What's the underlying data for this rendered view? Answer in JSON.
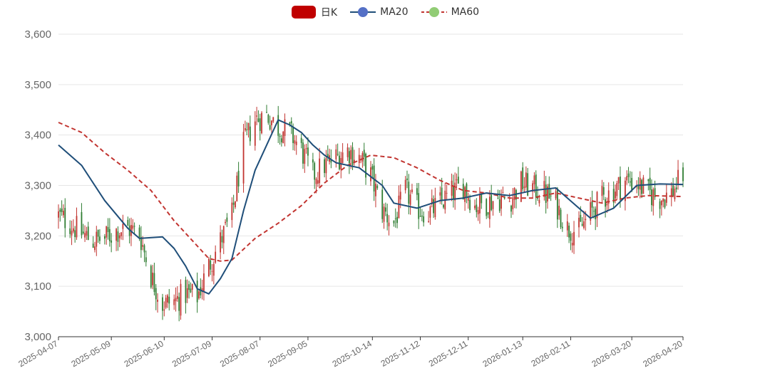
{
  "legend": {
    "kline_label": "日K",
    "ma20_label": "MA20",
    "ma60_label": "MA60"
  },
  "colors": {
    "up": "#c23531",
    "down": "#2f7d32",
    "ma20": "#1f4e79",
    "ma60": "#c23531",
    "legend_kline": "#c00000",
    "legend_ma20": "#5470c6",
    "legend_ma60": "#91cc75",
    "grid": "#e6e6e6",
    "axis": "#333333"
  },
  "chart_data": {
    "type": "candlestick",
    "title": "",
    "xlabel": "",
    "ylabel": "",
    "ylim": [
      3000,
      3600
    ],
    "y_ticks": [
      "3,000",
      "3,100",
      "3,200",
      "3,300",
      "3,400",
      "3,500",
      "3,600"
    ],
    "y_tick_values": [
      3000,
      3100,
      3200,
      3300,
      3400,
      3500,
      3600
    ],
    "x_range": [
      "2025-04-07",
      "2026-04-20"
    ],
    "x_ticks": [
      "2025-04-07",
      "2025-05-09",
      "2025-06-10",
      "2025-07-09",
      "2025-08-07",
      "2025-09-05",
      "2025-10-14",
      "2025-11-12",
      "2025-12-11",
      "2026-01-13",
      "2026-02-11",
      "2026-03-20",
      "2026-04-20"
    ],
    "grid": true,
    "legend_position": "top-center",
    "ma20": [
      [
        "2025-04-07",
        3380
      ],
      [
        "2025-04-21",
        3340
      ],
      [
        "2025-05-05",
        3270
      ],
      [
        "2025-05-19",
        3215
      ],
      [
        "2025-05-26",
        3195
      ],
      [
        "2025-06-09",
        3198
      ],
      [
        "2025-06-16",
        3175
      ],
      [
        "2025-06-23",
        3140
      ],
      [
        "2025-06-30",
        3095
      ],
      [
        "2025-07-07",
        3085
      ],
      [
        "2025-07-14",
        3115
      ],
      [
        "2025-07-21",
        3155
      ],
      [
        "2025-07-28",
        3250
      ],
      [
        "2025-08-04",
        3330
      ],
      [
        "2025-08-11",
        3380
      ],
      [
        "2025-08-18",
        3430
      ],
      [
        "2025-08-25",
        3420
      ],
      [
        "2025-09-01",
        3405
      ],
      [
        "2025-09-08",
        3380
      ],
      [
        "2025-09-15",
        3360
      ],
      [
        "2025-09-22",
        3345
      ],
      [
        "2025-10-06",
        3335
      ],
      [
        "2025-10-20",
        3300
      ],
      [
        "2025-10-27",
        3265
      ],
      [
        "2025-11-10",
        3255
      ],
      [
        "2025-11-24",
        3270
      ],
      [
        "2025-12-08",
        3275
      ],
      [
        "2025-12-22",
        3285
      ],
      [
        "2026-01-05",
        3280
      ],
      [
        "2026-01-19",
        3290
      ],
      [
        "2026-02-02",
        3295
      ],
      [
        "2026-02-16",
        3255
      ],
      [
        "2026-02-23",
        3235
      ],
      [
        "2026-03-09",
        3255
      ],
      [
        "2026-03-23",
        3300
      ],
      [
        "2026-04-06",
        3303
      ],
      [
        "2026-04-20",
        3302
      ]
    ],
    "ma60": [
      [
        "2025-04-07",
        3425
      ],
      [
        "2025-04-21",
        3405
      ],
      [
        "2025-05-05",
        3365
      ],
      [
        "2025-05-19",
        3330
      ],
      [
        "2025-06-02",
        3290
      ],
      [
        "2025-06-16",
        3230
      ],
      [
        "2025-06-30",
        3180
      ],
      [
        "2025-07-07",
        3155
      ],
      [
        "2025-07-14",
        3150
      ],
      [
        "2025-07-21",
        3152
      ],
      [
        "2025-08-04",
        3195
      ],
      [
        "2025-08-18",
        3225
      ],
      [
        "2025-09-01",
        3260
      ],
      [
        "2025-09-15",
        3305
      ],
      [
        "2025-09-29",
        3340
      ],
      [
        "2025-10-13",
        3360
      ],
      [
        "2025-10-27",
        3355
      ],
      [
        "2025-11-10",
        3335
      ],
      [
        "2025-11-24",
        3310
      ],
      [
        "2025-12-08",
        3290
      ],
      [
        "2025-12-22",
        3285
      ],
      [
        "2026-01-05",
        3275
      ],
      [
        "2026-01-19",
        3275
      ],
      [
        "2026-02-02",
        3285
      ],
      [
        "2026-02-16",
        3275
      ],
      [
        "2026-03-02",
        3265
      ],
      [
        "2026-03-16",
        3275
      ],
      [
        "2026-03-30",
        3280
      ],
      [
        "2026-04-20",
        3278
      ]
    ],
    "price_path": [
      [
        "2025-04-07",
        3240
      ],
      [
        "2025-04-14",
        3225
      ],
      [
        "2025-04-21",
        3205
      ],
      [
        "2025-04-28",
        3190
      ],
      [
        "2025-05-05",
        3195
      ],
      [
        "2025-05-12",
        3210
      ],
      [
        "2025-05-19",
        3215
      ],
      [
        "2025-05-26",
        3205
      ],
      [
        "2025-06-02",
        3120
      ],
      [
        "2025-06-09",
        3065
      ],
      [
        "2025-06-16",
        3070
      ],
      [
        "2025-06-23",
        3085
      ],
      [
        "2025-06-30",
        3080
      ],
      [
        "2025-07-07",
        3140
      ],
      [
        "2025-07-14",
        3190
      ],
      [
        "2025-07-21",
        3240
      ],
      [
        "2025-07-28",
        3380
      ],
      [
        "2025-08-04",
        3430
      ],
      [
        "2025-08-11",
        3440
      ],
      [
        "2025-08-18",
        3415
      ],
      [
        "2025-08-25",
        3405
      ],
      [
        "2025-09-01",
        3370
      ],
      [
        "2025-09-08",
        3320
      ],
      [
        "2025-09-15",
        3340
      ],
      [
        "2025-09-22",
        3355
      ],
      [
        "2025-09-29",
        3370
      ],
      [
        "2025-10-06",
        3355
      ],
      [
        "2025-10-13",
        3320
      ],
      [
        "2025-10-20",
        3250
      ],
      [
        "2025-10-27",
        3225
      ],
      [
        "2025-11-03",
        3290
      ],
      [
        "2025-11-10",
        3255
      ],
      [
        "2025-11-17",
        3245
      ],
      [
        "2025-11-24",
        3265
      ],
      [
        "2025-12-01",
        3285
      ],
      [
        "2025-12-08",
        3300
      ],
      [
        "2025-12-15",
        3260
      ],
      [
        "2025-12-22",
        3265
      ],
      [
        "2025-12-29",
        3275
      ],
      [
        "2026-01-05",
        3270
      ],
      [
        "2026-01-12",
        3305
      ],
      [
        "2026-01-19",
        3295
      ],
      [
        "2026-01-26",
        3285
      ],
      [
        "2026-02-02",
        3265
      ],
      [
        "2026-02-09",
        3215
      ],
      [
        "2026-02-16",
        3210
      ],
      [
        "2026-02-23",
        3245
      ],
      [
        "2026-03-02",
        3275
      ],
      [
        "2026-03-09",
        3290
      ],
      [
        "2026-03-16",
        3310
      ],
      [
        "2026-03-23",
        3305
      ],
      [
        "2026-03-30",
        3285
      ],
      [
        "2026-04-06",
        3275
      ],
      [
        "2026-04-13",
        3285
      ],
      [
        "2026-04-20",
        3320
      ]
    ]
  }
}
